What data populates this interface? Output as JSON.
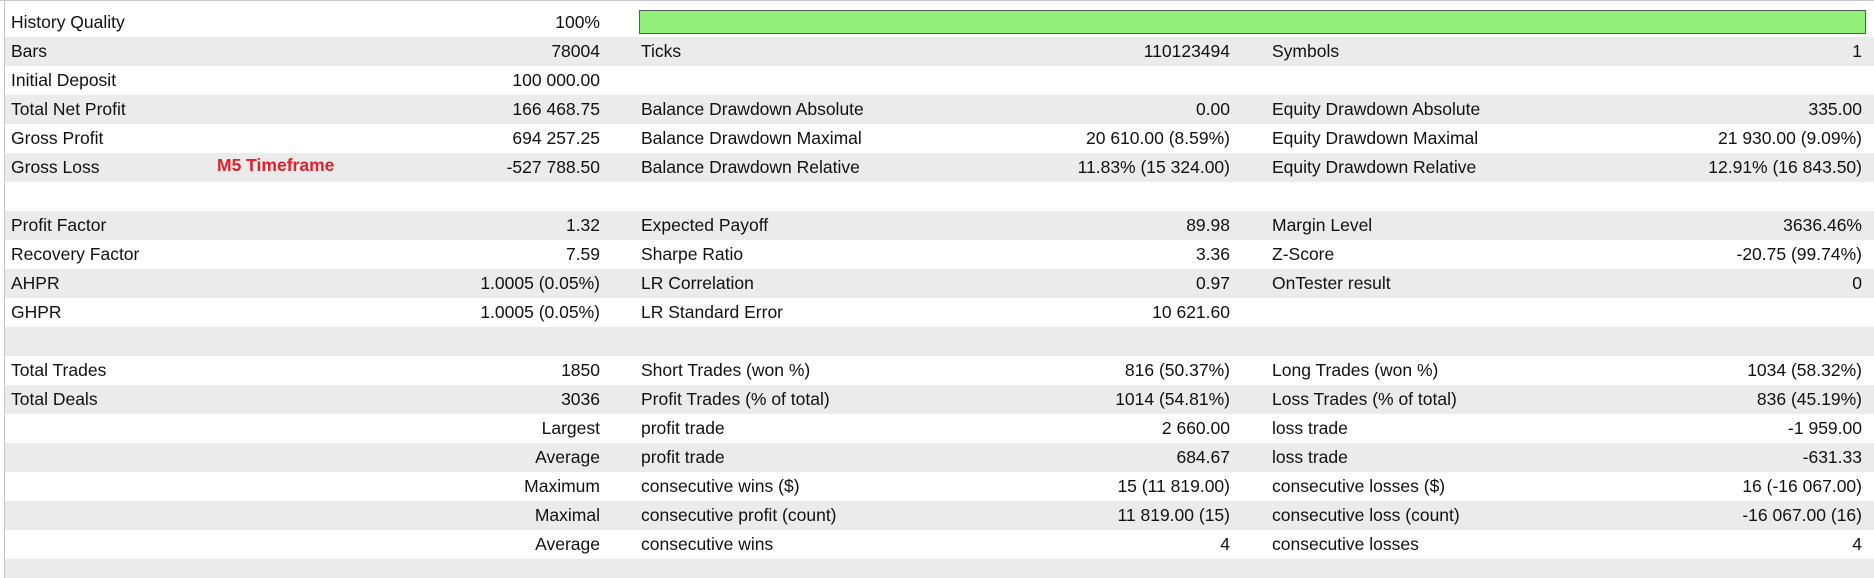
{
  "annotation": "M5 Timeframe",
  "sections": [
    {
      "rows": [
        {
          "left": {
            "label": "History Quality",
            "value": "100%"
          },
          "quality_bar": 100
        },
        {
          "left": {
            "label": "Bars",
            "value": "78004"
          },
          "middle": {
            "label": "Ticks",
            "value": "110123494"
          },
          "right": {
            "label": "Symbols",
            "value": "1"
          }
        },
        {
          "left": {
            "label": "Initial Deposit",
            "value": "100 000.00"
          }
        },
        {
          "left": {
            "label": "Total Net Profit",
            "value": "166 468.75"
          },
          "middle": {
            "label": "Balance Drawdown Absolute",
            "value": "0.00"
          },
          "right": {
            "label": "Equity Drawdown Absolute",
            "value": "335.00"
          }
        },
        {
          "left": {
            "label": "Gross Profit",
            "value": "694 257.25"
          },
          "middle": {
            "label": "Balance Drawdown Maximal",
            "value": "20 610.00 (8.59%)"
          },
          "right": {
            "label": "Equity Drawdown Maximal",
            "value": "21 930.00 (9.09%)"
          }
        },
        {
          "left": {
            "label": "Gross Loss",
            "value": "-527 788.50"
          },
          "middle": {
            "label": "Balance Drawdown Relative",
            "value": "11.83% (15 324.00)"
          },
          "right": {
            "label": "Equity Drawdown Relative",
            "value": "12.91% (16 843.50)"
          }
        }
      ]
    },
    {
      "rows": [
        {
          "left": {
            "label": "Profit Factor",
            "value": "1.32"
          },
          "middle": {
            "label": "Expected Payoff",
            "value": "89.98"
          },
          "right": {
            "label": "Margin Level",
            "value": "3636.46%"
          }
        },
        {
          "left": {
            "label": "Recovery Factor",
            "value": "7.59"
          },
          "middle": {
            "label": "Sharpe Ratio",
            "value": "3.36"
          },
          "right": {
            "label": "Z-Score",
            "value": "-20.75 (99.74%)"
          }
        },
        {
          "left": {
            "label": "AHPR",
            "value": "1.0005 (0.05%)"
          },
          "middle": {
            "label": "LR Correlation",
            "value": "0.97"
          },
          "right": {
            "label": "OnTester result",
            "value": "0"
          }
        },
        {
          "left": {
            "label": "GHPR",
            "value": "1.0005 (0.05%)"
          },
          "middle": {
            "label": "LR Standard Error",
            "value": "10 621.60"
          }
        }
      ]
    },
    {
      "rows": [
        {
          "left": {
            "label": "Total Trades",
            "value": "1850"
          },
          "middle": {
            "label": "Short Trades (won %)",
            "value": "816 (50.37%)"
          },
          "right": {
            "label": "Long Trades (won %)",
            "value": "1034 (58.32%)"
          }
        },
        {
          "left": {
            "label": "Total Deals",
            "value": "3036"
          },
          "middle": {
            "label": "Profit Trades (% of total)",
            "value": "1014 (54.81%)"
          },
          "right": {
            "label": "Loss Trades (% of total)",
            "value": "836 (45.19%)"
          }
        },
        {
          "left": {
            "value": "Largest"
          },
          "middle": {
            "label": "profit trade",
            "value": "2 660.00"
          },
          "right": {
            "label": "loss trade",
            "value": "-1 959.00"
          }
        },
        {
          "left": {
            "value": "Average"
          },
          "middle": {
            "label": "profit trade",
            "value": "684.67"
          },
          "right": {
            "label": "loss trade",
            "value": "-631.33"
          }
        },
        {
          "left": {
            "value": "Maximum"
          },
          "middle": {
            "label": "consecutive wins ($)",
            "value": "15 (11 819.00)"
          },
          "right": {
            "label": "consecutive losses ($)",
            "value": "16 (-16 067.00)"
          }
        },
        {
          "left": {
            "value": "Maximal"
          },
          "middle": {
            "label": "consecutive profit (count)",
            "value": "11 819.00 (15)"
          },
          "right": {
            "label": "consecutive loss (count)",
            "value": "-16 067.00 (16)"
          }
        },
        {
          "left": {
            "value": "Average"
          },
          "middle": {
            "label": "consecutive wins",
            "value": "4"
          },
          "right": {
            "label": "consecutive losses",
            "value": "4"
          }
        }
      ]
    }
  ]
}
